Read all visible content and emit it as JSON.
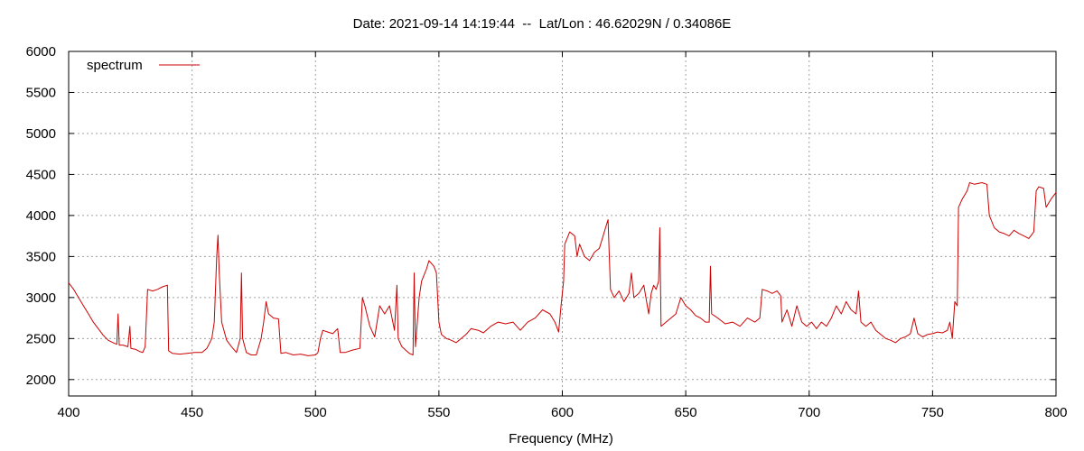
{
  "chart_data": {
    "type": "line",
    "title": "Date: 2021-09-14 14:19:44  --  Lat/Lon : 46.62029N / 0.34086E",
    "xlabel": "Frequency (MHz)",
    "ylabel": "",
    "xlim": [
      400,
      800
    ],
    "ylim": [
      1800,
      6000
    ],
    "xticks": [
      400,
      450,
      500,
      550,
      600,
      650,
      700,
      750,
      800
    ],
    "yticks": [
      2000,
      2500,
      3000,
      3500,
      4000,
      4500,
      5000,
      5500,
      6000
    ],
    "grid": true,
    "legend_position": "top-left",
    "series": [
      {
        "name": "spectrum",
        "color": "#cc0000",
        "points": [
          [
            400,
            3180
          ],
          [
            402,
            3100
          ],
          [
            404,
            3000
          ],
          [
            406,
            2900
          ],
          [
            408,
            2800
          ],
          [
            410,
            2700
          ],
          [
            412,
            2620
          ],
          [
            414,
            2540
          ],
          [
            416,
            2480
          ],
          [
            418,
            2450
          ],
          [
            419.5,
            2430
          ],
          [
            420,
            2800
          ],
          [
            420.5,
            2420
          ],
          [
            422,
            2420
          ],
          [
            424,
            2400
          ],
          [
            424.8,
            2650
          ],
          [
            425.2,
            2380
          ],
          [
            427,
            2370
          ],
          [
            429,
            2340
          ],
          [
            430,
            2330
          ],
          [
            431,
            2400
          ],
          [
            432,
            3100
          ],
          [
            434,
            3080
          ],
          [
            436,
            3100
          ],
          [
            438,
            3130
          ],
          [
            440,
            3150
          ],
          [
            440.5,
            2350
          ],
          [
            442,
            2320
          ],
          [
            445,
            2310
          ],
          [
            448,
            2320
          ],
          [
            451,
            2330
          ],
          [
            454,
            2330
          ],
          [
            456,
            2380
          ],
          [
            458,
            2500
          ],
          [
            459,
            2700
          ],
          [
            460,
            3500
          ],
          [
            460.5,
            3760
          ],
          [
            461,
            3300
          ],
          [
            462,
            2700
          ],
          [
            464,
            2480
          ],
          [
            466,
            2400
          ],
          [
            468,
            2330
          ],
          [
            469.5,
            2500
          ],
          [
            470,
            3300
          ],
          [
            470.5,
            2500
          ],
          [
            472,
            2330
          ],
          [
            474,
            2300
          ],
          [
            476,
            2300
          ],
          [
            478,
            2500
          ],
          [
            479,
            2700
          ],
          [
            480,
            2950
          ],
          [
            481,
            2800
          ],
          [
            483,
            2750
          ],
          [
            485,
            2740
          ],
          [
            486,
            2320
          ],
          [
            488,
            2330
          ],
          [
            491,
            2300
          ],
          [
            494,
            2310
          ],
          [
            497,
            2290
          ],
          [
            500,
            2300
          ],
          [
            501,
            2330
          ],
          [
            502,
            2500
          ],
          [
            503,
            2600
          ],
          [
            505,
            2580
          ],
          [
            507,
            2560
          ],
          [
            509,
            2620
          ],
          [
            510,
            2330
          ],
          [
            512,
            2330
          ],
          [
            515,
            2360
          ],
          [
            518,
            2380
          ],
          [
            519,
            3000
          ],
          [
            520,
            2900
          ],
          [
            522,
            2650
          ],
          [
            524,
            2520
          ],
          [
            526,
            2900
          ],
          [
            528,
            2800
          ],
          [
            530,
            2900
          ],
          [
            532,
            2600
          ],
          [
            533,
            3150
          ],
          [
            533.5,
            2500
          ],
          [
            535,
            2400
          ],
          [
            538,
            2320
          ],
          [
            539.5,
            2300
          ],
          [
            540,
            3300
          ],
          [
            540.5,
            2400
          ],
          [
            542,
            3000
          ],
          [
            543,
            3200
          ],
          [
            545,
            3350
          ],
          [
            546,
            3450
          ],
          [
            548,
            3380
          ],
          [
            549,
            3300
          ],
          [
            550,
            2700
          ],
          [
            551,
            2550
          ],
          [
            553,
            2500
          ],
          [
            555,
            2480
          ],
          [
            557,
            2450
          ],
          [
            559,
            2500
          ],
          [
            561,
            2550
          ],
          [
            563,
            2620
          ],
          [
            566,
            2600
          ],
          [
            568,
            2570
          ],
          [
            571,
            2650
          ],
          [
            574,
            2700
          ],
          [
            577,
            2680
          ],
          [
            580,
            2700
          ],
          [
            583,
            2600
          ],
          [
            586,
            2700
          ],
          [
            589,
            2750
          ],
          [
            592,
            2850
          ],
          [
            595,
            2800
          ],
          [
            597,
            2700
          ],
          [
            598.5,
            2580
          ],
          [
            599.5,
            2900
          ],
          [
            600.5,
            3200
          ],
          [
            601,
            3650
          ],
          [
            603,
            3800
          ],
          [
            605,
            3750
          ],
          [
            606,
            3500
          ],
          [
            607,
            3650
          ],
          [
            609,
            3500
          ],
          [
            611,
            3450
          ],
          [
            613,
            3550
          ],
          [
            615,
            3600
          ],
          [
            617,
            3800
          ],
          [
            618.5,
            3950
          ],
          [
            619.5,
            3100
          ],
          [
            621,
            3000
          ],
          [
            623,
            3080
          ],
          [
            625,
            2950
          ],
          [
            627,
            3050
          ],
          [
            628,
            3300
          ],
          [
            629,
            3000
          ],
          [
            631,
            3050
          ],
          [
            633,
            3150
          ],
          [
            635,
            2800
          ],
          [
            636,
            3050
          ],
          [
            637,
            3150
          ],
          [
            638,
            3100
          ],
          [
            639,
            3200
          ],
          [
            639.5,
            3850
          ],
          [
            640,
            2650
          ],
          [
            642,
            2700
          ],
          [
            644,
            2750
          ],
          [
            646,
            2800
          ],
          [
            648,
            3000
          ],
          [
            650,
            2900
          ],
          [
            652,
            2850
          ],
          [
            654,
            2780
          ],
          [
            656,
            2750
          ],
          [
            658,
            2700
          ],
          [
            659.5,
            2700
          ],
          [
            660,
            3380
          ],
          [
            660.5,
            2800
          ],
          [
            663,
            2750
          ],
          [
            666,
            2680
          ],
          [
            669,
            2700
          ],
          [
            672,
            2650
          ],
          [
            675,
            2750
          ],
          [
            678,
            2700
          ],
          [
            680,
            2750
          ],
          [
            681,
            3100
          ],
          [
            683,
            3080
          ],
          [
            685,
            3050
          ],
          [
            687,
            3080
          ],
          [
            688.5,
            3020
          ],
          [
            689,
            2700
          ],
          [
            691,
            2850
          ],
          [
            693,
            2650
          ],
          [
            695,
            2900
          ],
          [
            697,
            2700
          ],
          [
            699,
            2650
          ],
          [
            701,
            2700
          ],
          [
            703,
            2620
          ],
          [
            705,
            2700
          ],
          [
            707,
            2650
          ],
          [
            709,
            2750
          ],
          [
            711,
            2900
          ],
          [
            713,
            2800
          ],
          [
            715,
            2950
          ],
          [
            717,
            2850
          ],
          [
            719,
            2800
          ],
          [
            720,
            3080
          ],
          [
            721,
            2700
          ],
          [
            723,
            2650
          ],
          [
            725,
            2700
          ],
          [
            727,
            2600
          ],
          [
            729,
            2550
          ],
          [
            731,
            2500
          ],
          [
            733,
            2480
          ],
          [
            735,
            2450
          ],
          [
            737,
            2500
          ],
          [
            739,
            2520
          ],
          [
            741,
            2560
          ],
          [
            742.5,
            2750
          ],
          [
            744,
            2560
          ],
          [
            746,
            2520
          ],
          [
            748,
            2550
          ],
          [
            750,
            2560
          ],
          [
            752,
            2580
          ],
          [
            754,
            2570
          ],
          [
            756,
            2600
          ],
          [
            757,
            2700
          ],
          [
            758,
            2500
          ],
          [
            759,
            2950
          ],
          [
            760,
            2900
          ],
          [
            760.5,
            4100
          ],
          [
            762,
            4200
          ],
          [
            764,
            4300
          ],
          [
            765,
            4400
          ],
          [
            767,
            4380
          ],
          [
            770,
            4400
          ],
          [
            772,
            4380
          ],
          [
            773,
            4000
          ],
          [
            775,
            3850
          ],
          [
            777,
            3800
          ],
          [
            779,
            3780
          ],
          [
            781,
            3750
          ],
          [
            783,
            3820
          ],
          [
            785,
            3780
          ],
          [
            787,
            3750
          ],
          [
            789,
            3720
          ],
          [
            791,
            3800
          ],
          [
            792,
            4300
          ],
          [
            793,
            4350
          ],
          [
            795,
            4330
          ],
          [
            796,
            4100
          ],
          [
            798,
            4200
          ],
          [
            800,
            4280
          ]
        ]
      }
    ]
  }
}
